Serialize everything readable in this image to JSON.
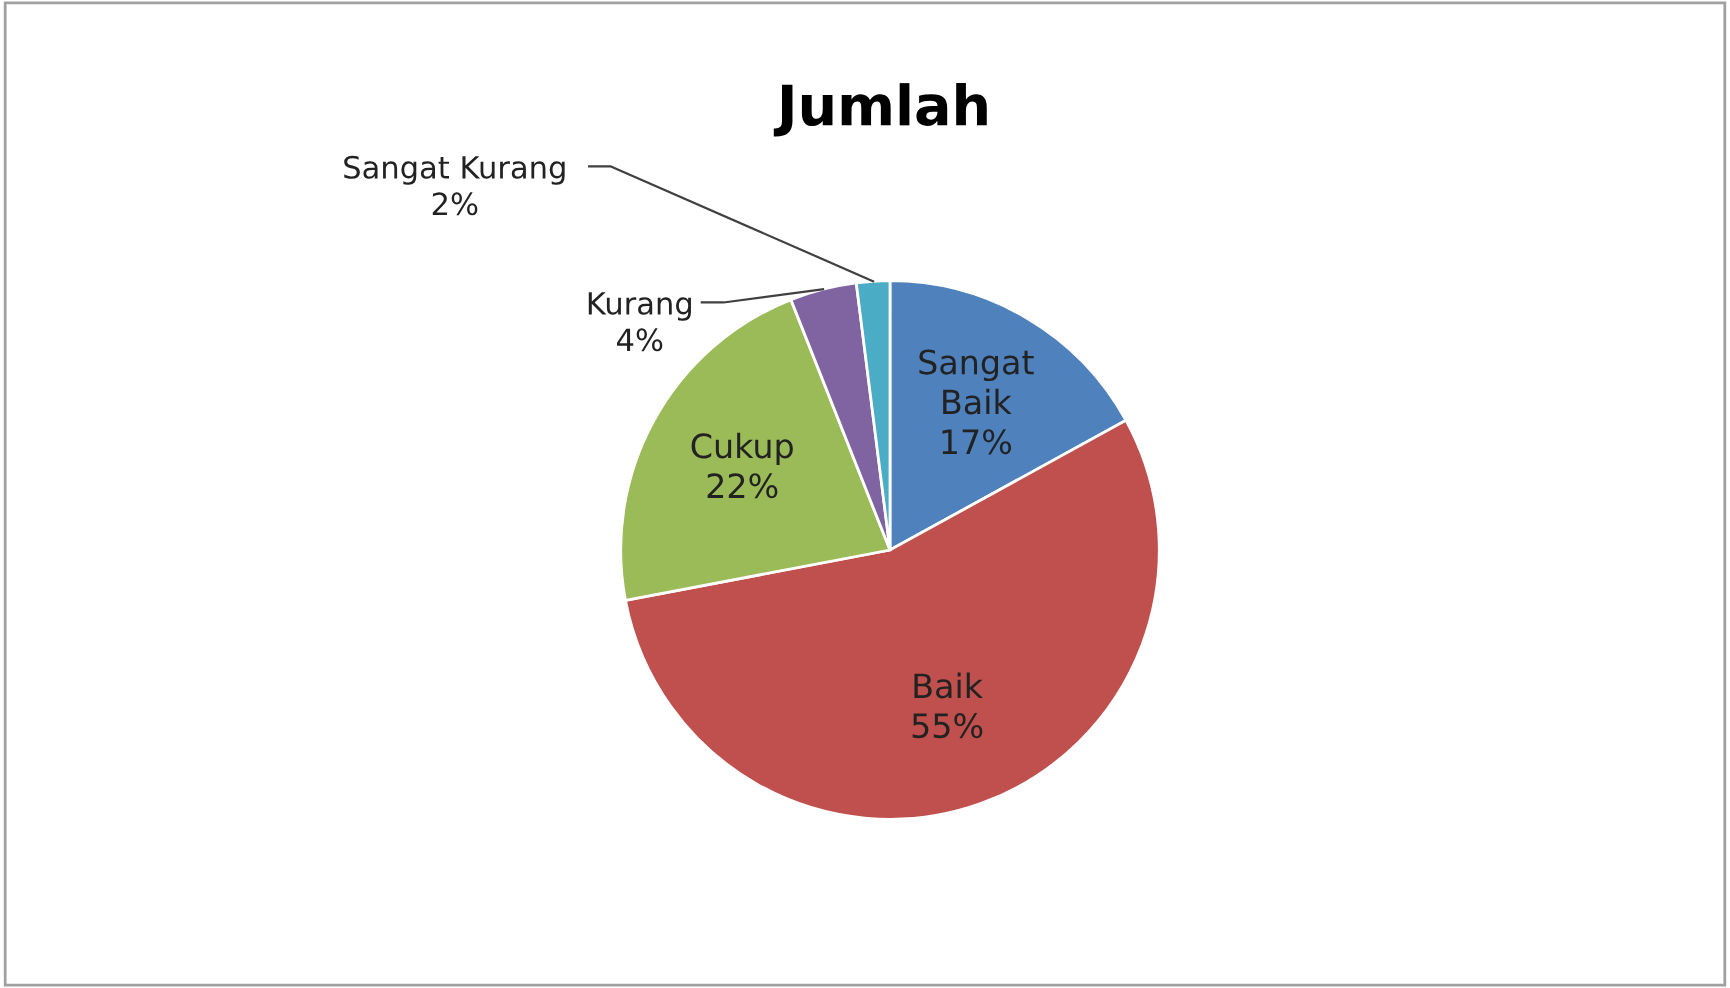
{
  "chart_data": {
    "type": "pie",
    "title": "Jumlah",
    "categories": [
      "Sangat Baik",
      "Baik",
      "Cukup",
      "Kurang",
      "Sangat Kurang"
    ],
    "values": [
      17,
      55,
      22,
      4,
      2
    ],
    "colors": [
      "#4f81bd",
      "#c0504d",
      "#9bbb59",
      "#8064a2",
      "#4bacc6"
    ],
    "value_labels": [
      "17%",
      "55%",
      "22%",
      "4%",
      "2%"
    ],
    "legend": false
  }
}
